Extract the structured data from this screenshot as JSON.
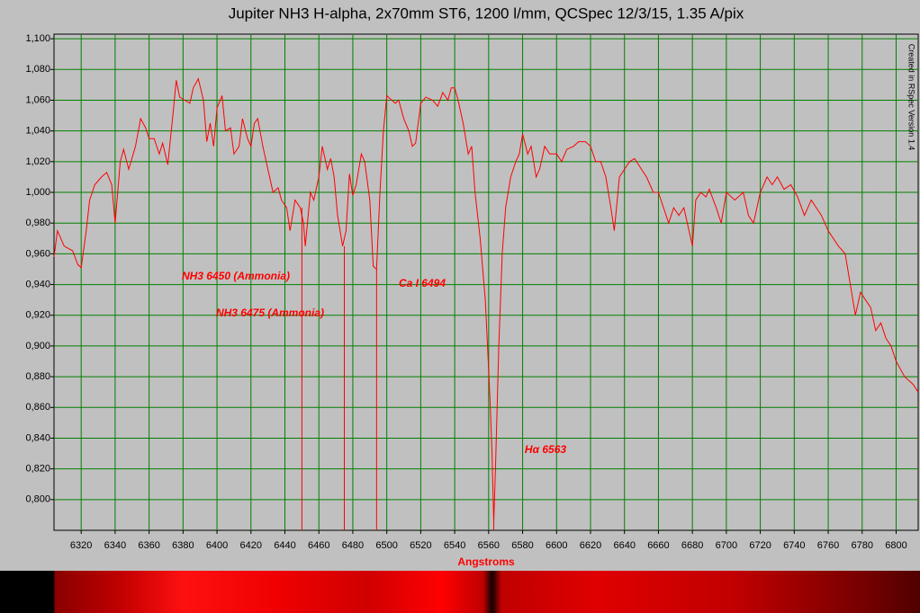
{
  "chart_data": {
    "type": "line",
    "title": "Jupiter NH3 H-alpha, 2x70mm ST6, 1200 l/mm, QCSpec 12/3/15, 1.35 A/pix",
    "x_label": "Angstroms",
    "side_note": "Created in RSpec Version 1.4",
    "xlim": [
      6304,
      6813
    ],
    "ylim": [
      0.78,
      1.103
    ],
    "xticks": [
      6320,
      6340,
      6360,
      6380,
      6400,
      6420,
      6440,
      6460,
      6480,
      6500,
      6520,
      6540,
      6560,
      6580,
      6600,
      6620,
      6640,
      6660,
      6680,
      6700,
      6720,
      6740,
      6760,
      6780,
      6800
    ],
    "yticks": [
      {
        "value": 0.8,
        "label": "0,800"
      },
      {
        "value": 0.82,
        "label": "0,820"
      },
      {
        "value": 0.84,
        "label": "0,840"
      },
      {
        "value": 0.86,
        "label": "0,860"
      },
      {
        "value": 0.88,
        "label": "0,880"
      },
      {
        "value": 0.9,
        "label": "0,900"
      },
      {
        "value": 0.92,
        "label": "0,920"
      },
      {
        "value": 0.94,
        "label": "0,940"
      },
      {
        "value": 0.96,
        "label": "0,960"
      },
      {
        "value": 0.98,
        "label": "0,980"
      },
      {
        "value": 1.0,
        "label": "1,000"
      },
      {
        "value": 1.02,
        "label": "1,020"
      },
      {
        "value": 1.04,
        "label": "1,040"
      },
      {
        "value": 1.06,
        "label": "1,060"
      },
      {
        "value": 1.08,
        "label": "1,080"
      },
      {
        "value": 1.1,
        "label": "1,100"
      }
    ],
    "grid": true,
    "annotations": [
      {
        "text": "NH3 6450 (Ammonia)",
        "x": 6450
      },
      {
        "text": "NH3 6475 (Ammonia)",
        "x": 6475
      },
      {
        "text": "Ca I 6494",
        "x": 6494
      },
      {
        "text": "Hα 6563",
        "x": 6563
      }
    ],
    "series": [
      {
        "name": "Jupiter",
        "color": "#ff0000",
        "x": [
          6304,
          6306,
          6310,
          6315,
          6318,
          6320,
          6323,
          6325,
          6328,
          6332,
          6335,
          6338,
          6340,
          6343,
          6345,
          6348,
          6352,
          6355,
          6358,
          6360,
          6363,
          6366,
          6368,
          6371,
          6374,
          6376,
          6378,
          6381,
          6384,
          6386,
          6389,
          6392,
          6394,
          6396,
          6398,
          6400,
          6403,
          6405,
          6408,
          6410,
          6413,
          6415,
          6418,
          6420,
          6422,
          6424,
          6427,
          6430,
          6433,
          6436,
          6438,
          6441,
          6443,
          6446,
          6449,
          6451,
          6452,
          6455,
          6457,
          6460,
          6462,
          6465,
          6467,
          6469,
          6471,
          6474,
          6476,
          6478,
          6480,
          6482,
          6485,
          6487,
          6490,
          6492,
          6494,
          6496,
          6498,
          6500,
          6503,
          6505,
          6507,
          6510,
          6513,
          6515,
          6517,
          6520,
          6523,
          6527,
          6530,
          6533,
          6536,
          6538,
          6540,
          6542,
          6545,
          6548,
          6550,
          6552,
          6555,
          6558,
          6560,
          6561,
          6562,
          6563,
          6564,
          6566,
          6568,
          6570,
          6573,
          6576,
          6578,
          6580,
          6583,
          6585,
          6588,
          6590,
          6593,
          6596,
          6600,
          6603,
          6606,
          6610,
          6613,
          6617,
          6620,
          6623,
          6626,
          6629,
          6632,
          6634,
          6637,
          6640,
          6643,
          6646,
          6650,
          6653,
          6657,
          6660,
          6663,
          6666,
          6669,
          6672,
          6675,
          6678,
          6680,
          6682,
          6685,
          6688,
          6690,
          6694,
          6697,
          6700,
          6705,
          6710,
          6713,
          6716,
          6720,
          6724,
          6727,
          6730,
          6734,
          6738,
          6742,
          6746,
          6750,
          6753,
          6756,
          6760,
          6763,
          6766,
          6770,
          6773,
          6776,
          6779,
          6782,
          6785,
          6788,
          6791,
          6794,
          6797,
          6800,
          6805,
          6810,
          6813
        ],
        "values": [
          0.958,
          0.975,
          0.965,
          0.962,
          0.953,
          0.951,
          0.975,
          0.995,
          1.005,
          1.01,
          1.013,
          1.005,
          0.98,
          1.02,
          1.028,
          1.015,
          1.03,
          1.048,
          1.042,
          1.035,
          1.035,
          1.025,
          1.032,
          1.018,
          1.05,
          1.073,
          1.062,
          1.06,
          1.058,
          1.068,
          1.074,
          1.06,
          1.033,
          1.045,
          1.03,
          1.055,
          1.063,
          1.04,
          1.042,
          1.025,
          1.03,
          1.048,
          1.035,
          1.03,
          1.045,
          1.048,
          1.03,
          1.015,
          1.0,
          1.003,
          0.995,
          0.99,
          0.975,
          0.995,
          0.99,
          0.98,
          0.965,
          1.0,
          0.995,
          1.01,
          1.03,
          1.015,
          1.022,
          1.01,
          0.985,
          0.965,
          0.975,
          1.012,
          0.998,
          1.005,
          1.025,
          1.02,
          0.995,
          0.952,
          0.95,
          1.0,
          1.04,
          1.063,
          1.06,
          1.058,
          1.06,
          1.048,
          1.04,
          1.03,
          1.032,
          1.058,
          1.062,
          1.06,
          1.056,
          1.065,
          1.06,
          1.068,
          1.068,
          1.06,
          1.045,
          1.025,
          1.03,
          1.0,
          0.97,
          0.93,
          0.885,
          0.86,
          0.83,
          0.785,
          0.82,
          0.9,
          0.96,
          0.99,
          1.01,
          1.02,
          1.025,
          1.038,
          1.025,
          1.03,
          1.01,
          1.015,
          1.03,
          1.025,
          1.025,
          1.02,
          1.028,
          1.03,
          1.033,
          1.033,
          1.03,
          1.02,
          1.02,
          1.01,
          0.99,
          0.975,
          1.01,
          1.015,
          1.02,
          1.022,
          1.015,
          1.01,
          1.0,
          1.0,
          0.99,
          0.98,
          0.99,
          0.985,
          0.99,
          0.975,
          0.965,
          0.995,
          1.0,
          0.997,
          1.002,
          0.99,
          0.98,
          1.0,
          0.995,
          1.0,
          0.985,
          0.98,
          1.0,
          1.01,
          1.005,
          1.01,
          1.002,
          1.005,
          0.997,
          0.985,
          0.995,
          0.99,
          0.985,
          0.975,
          0.97,
          0.965,
          0.96,
          0.94,
          0.92,
          0.935,
          0.93,
          0.925,
          0.91,
          0.915,
          0.905,
          0.9,
          0.89,
          0.88,
          0.875,
          0.87
        ]
      }
    ]
  }
}
